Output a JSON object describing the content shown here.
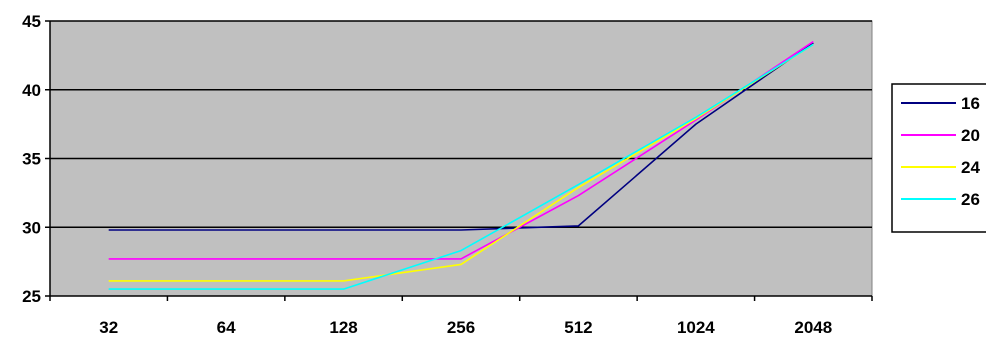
{
  "chart_data": {
    "type": "line",
    "categories": [
      "32",
      "64",
      "128",
      "256",
      "512",
      "1024",
      "2048"
    ],
    "ylim": [
      25,
      45
    ],
    "yticks": [
      25,
      30,
      35,
      40,
      45
    ],
    "grid": true,
    "plot_background": "#C0C0C0",
    "legend_placement": "right",
    "series": [
      {
        "name": "16",
        "color": "#000080",
        "values": [
          29.8,
          29.8,
          29.8,
          29.8,
          30.1,
          37.5,
          43.4
        ]
      },
      {
        "name": "20",
        "color": "#FF00FF",
        "values": [
          27.7,
          27.7,
          27.7,
          27.7,
          32.3,
          37.8,
          43.5
        ]
      },
      {
        "name": "24",
        "color": "#FFFF00",
        "values": [
          26.1,
          26.1,
          26.1,
          27.3,
          32.9,
          37.9,
          43.3
        ]
      },
      {
        "name": "26",
        "color": "#00FFFF",
        "values": [
          25.5,
          25.5,
          25.5,
          28.3,
          33.1,
          38.0,
          43.3
        ]
      }
    ]
  }
}
